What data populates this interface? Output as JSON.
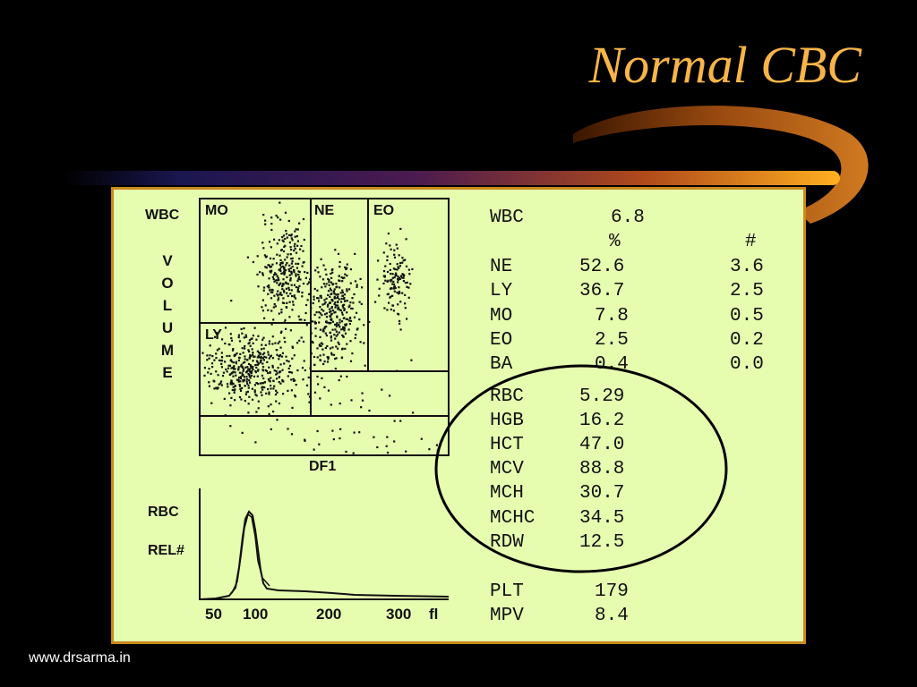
{
  "title": "Normal CBC",
  "footer": "www.drsarma.in",
  "scatter": {
    "y_label": "WBC",
    "y_label_vertical": [
      "V",
      "O",
      "L",
      "U",
      "M",
      "E"
    ],
    "x_label": "DF1",
    "regions": [
      "MO",
      "NE",
      "EO",
      "LY"
    ]
  },
  "histogram": {
    "y_label_1": "RBC",
    "y_label_2": "REL#",
    "ticks": [
      "50",
      "100",
      "200",
      "300",
      "fl"
    ]
  },
  "results": {
    "wbc": {
      "label": "WBC",
      "value": "6.8"
    },
    "headers": {
      "pct": "%",
      "abs": "#"
    },
    "differential": [
      {
        "label": "NE",
        "pct": "52.6",
        "abs": "3.6"
      },
      {
        "label": "LY",
        "pct": "36.7",
        "abs": "2.5"
      },
      {
        "label": "MO",
        "pct": "7.8",
        "abs": "0.5"
      },
      {
        "label": "EO",
        "pct": "2.5",
        "abs": "0.2"
      },
      {
        "label": "BA",
        "pct": "0.4",
        "abs": "0.0"
      }
    ],
    "rbc_indices": [
      {
        "label": "RBC",
        "value": "5.29"
      },
      {
        "label": "HGB",
        "value": "16.2"
      },
      {
        "label": "HCT",
        "value": "47.0"
      },
      {
        "label": "MCV",
        "value": "88.8"
      },
      {
        "label": "MCH",
        "value": "30.7"
      },
      {
        "label": "MCHC",
        "value": "34.5"
      },
      {
        "label": "RDW",
        "value": "12.5"
      }
    ],
    "platelets": [
      {
        "label": "PLT",
        "value": "179"
      },
      {
        "label": "MPV",
        "value": "8.4"
      }
    ]
  },
  "colors": {
    "title": "#f7b548",
    "panel": "#e6fdb0",
    "accent": "#c98a1c"
  }
}
